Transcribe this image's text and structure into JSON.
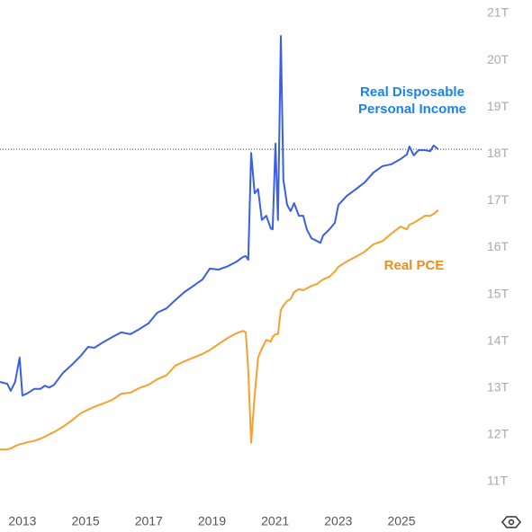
{
  "chart_data": {
    "type": "line",
    "x": [
      2012.29,
      2012.52,
      2012.63,
      2012.77,
      2012.91,
      2013.0,
      2013.14,
      2013.37,
      2013.57,
      2013.71,
      2013.85,
      2014.0,
      2014.28,
      2014.57,
      2014.85,
      2015.08,
      2015.28,
      2015.56,
      2015.85,
      2016.13,
      2016.42,
      2016.7,
      2016.99,
      2017.27,
      2017.56,
      2017.84,
      2018.13,
      2018.41,
      2018.7,
      2018.93,
      2019.21,
      2019.5,
      2019.78,
      2019.98,
      2020.07,
      2020.15,
      2020.24,
      2020.35,
      2020.46,
      2020.58,
      2020.72,
      2020.86,
      2020.92,
      2021.01,
      2021.09,
      2021.18,
      2021.26,
      2021.38,
      2021.49,
      2021.6,
      2021.75,
      2021.89,
      2022.0,
      2022.15,
      2022.32,
      2022.43,
      2022.52,
      2022.72,
      2022.89,
      2023.0,
      2023.26,
      2023.54,
      2023.83,
      2024.11,
      2024.4,
      2024.68,
      2024.97,
      2025.17,
      2025.25,
      2025.39,
      2025.54,
      2025.74,
      2025.91,
      2026.02,
      2026.16
    ],
    "series": [
      {
        "name": "Real Disposable Personal Income",
        "color": "#3a5fe5",
        "label_color": "#1a82ee",
        "values": [
          13.13,
          13.09,
          12.94,
          13.13,
          13.65,
          12.84,
          12.88,
          12.98,
          12.98,
          13.05,
          13.01,
          13.07,
          13.32,
          13.5,
          13.69,
          13.88,
          13.86,
          13.98,
          14.09,
          14.19,
          14.15,
          14.26,
          14.38,
          14.61,
          14.7,
          14.88,
          15.05,
          15.18,
          15.32,
          15.55,
          15.53,
          15.6,
          15.7,
          15.8,
          15.82,
          15.74,
          18.02,
          17.16,
          17.25,
          16.59,
          16.68,
          16.41,
          16.39,
          18.22,
          16.59,
          20.52,
          17.45,
          16.91,
          16.78,
          16.95,
          16.68,
          16.68,
          16.39,
          16.2,
          16.14,
          16.1,
          16.26,
          16.39,
          16.53,
          16.91,
          17.1,
          17.24,
          17.39,
          17.6,
          17.74,
          17.78,
          17.89,
          17.99,
          18.16,
          17.97,
          18.08,
          18.08,
          18.06,
          18.18,
          18.1
        ]
      },
      {
        "name": "Real PCE",
        "color": "#f7a030",
        "label_color": "#f28c18",
        "values": [
          11.69,
          11.69,
          11.71,
          11.76,
          11.8,
          11.81,
          11.84,
          11.87,
          11.92,
          11.96,
          12.01,
          12.06,
          12.17,
          12.31,
          12.46,
          12.54,
          12.6,
          12.67,
          12.75,
          12.88,
          12.9,
          13.0,
          13.07,
          13.19,
          13.27,
          13.48,
          13.57,
          13.65,
          13.73,
          13.81,
          13.94,
          14.07,
          14.17,
          14.22,
          14.19,
          13.38,
          11.83,
          12.84,
          13.65,
          13.84,
          14.03,
          13.99,
          14.09,
          14.15,
          14.15,
          14.67,
          14.76,
          14.86,
          14.9,
          15.05,
          15.11,
          15.09,
          15.13,
          15.18,
          15.22,
          15.28,
          15.32,
          15.38,
          15.49,
          15.59,
          15.7,
          15.8,
          15.91,
          16.07,
          16.14,
          16.3,
          16.45,
          16.39,
          16.49,
          16.53,
          16.59,
          16.68,
          16.68,
          16.72,
          16.8
        ]
      }
    ],
    "xlim": [
      2012.29,
      2026.68
    ],
    "xticks": [
      2013,
      2015,
      2017,
      2019,
      2021,
      2023,
      2025
    ],
    "ylim": [
      11,
      21
    ],
    "yticks": [
      {
        "value": 11,
        "label": "11T"
      },
      {
        "value": 12,
        "label": "12T"
      },
      {
        "value": 13,
        "label": "13T"
      },
      {
        "value": 14,
        "label": "14T"
      },
      {
        "value": 15,
        "label": "15T"
      },
      {
        "value": 16,
        "label": "16T"
      },
      {
        "value": 17,
        "label": "17T"
      },
      {
        "value": 18,
        "label": "18T"
      },
      {
        "value": 19,
        "label": "19T"
      },
      {
        "value": 20,
        "label": "20T"
      },
      {
        "value": 21,
        "label": "21T"
      }
    ],
    "last_value_line": true
  }
}
